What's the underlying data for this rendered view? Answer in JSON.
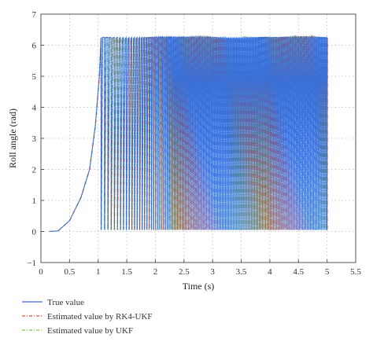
{
  "chart_data": {
    "type": "line",
    "title": "",
    "xlabel": "Time (s)",
    "ylabel": "Roll angle (rad)",
    "xlim": [
      0,
      5.5
    ],
    "ylim": [
      -1,
      7
    ],
    "xticks": [
      "0",
      "0.5",
      "1",
      "1.5",
      "2",
      "2.5",
      "3",
      "3.5",
      "4",
      "4.5",
      "5",
      "5.5"
    ],
    "yticks": [
      "−1",
      "0",
      "1",
      "2",
      "3",
      "4",
      "5",
      "6",
      "7"
    ],
    "grid": true,
    "legend_position": "bottom-left",
    "series": [
      {
        "name": "True value",
        "color": "#3a6fd6",
        "style": "solid"
      },
      {
        "name": "Estimated value by RK4-UKF",
        "color": "#d9503d",
        "style": "dashdot"
      },
      {
        "name": "Estimated value by UKF",
        "color": "#7cc94a",
        "style": "dashdot"
      }
    ],
    "description_points": {
      "ramp": [
        [
          0.15,
          0.0
        ],
        [
          0.3,
          0.02
        ],
        [
          0.5,
          0.35
        ],
        [
          0.7,
          1.1
        ],
        [
          0.85,
          2.0
        ],
        [
          0.95,
          3.4
        ],
        [
          1.02,
          5.0
        ],
        [
          1.05,
          6.2
        ]
      ],
      "oscillation_start": 1.05,
      "oscillation_end": 5.0,
      "oscillation_min": 0.05,
      "oscillation_max": 6.25
    }
  }
}
